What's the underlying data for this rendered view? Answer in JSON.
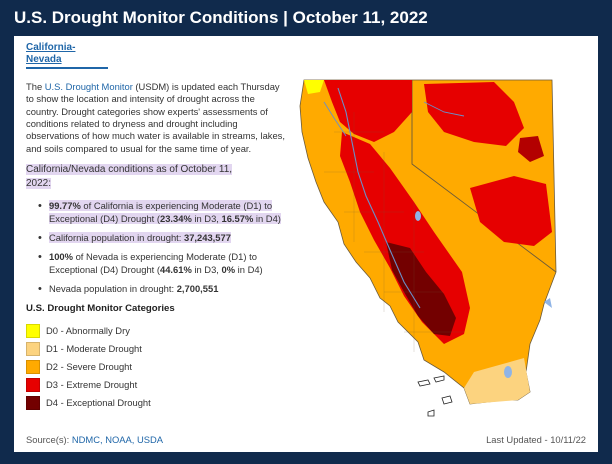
{
  "header": {
    "title": "U.S. Drought Monitor Conditions | October 11, 2022"
  },
  "region": {
    "title": "California-Nevada"
  },
  "intro": {
    "prefix": "The ",
    "link_text": "U.S. Drought Monitor",
    "suffix": " (USDM) is updated each Thursday to show the location and intensity of drought across the country. Drought categories show experts' assessments of conditions related to dryness and drought including observations of how much water is available in streams, lakes, and soils compared to usual for the same time of year."
  },
  "conditions_heading": "California/Nevada conditions as of October 11, 2022:",
  "stats": {
    "ca_pct": "99.77%",
    "ca_text1": " of California is experiencing Moderate (D1) to Exceptional (D4) Drought (",
    "ca_d3": "23.34%",
    "ca_text2": " in D3, ",
    "ca_d4": "16.57%",
    "ca_text3": " in D4)",
    "ca_pop_label": "California population in drought: ",
    "ca_pop": "37,243,577",
    "nv_pct": "100%",
    "nv_text1": " of Nevada is experiencing Moderate (D1) to Exceptional (D4) Drought (",
    "nv_d3": "44.61%",
    "nv_text2": " in D3, ",
    "nv_d4": "0%",
    "nv_text3": " in D4)",
    "nv_pop_label": "Nevada population in drought: ",
    "nv_pop": "2,700,551"
  },
  "legend": {
    "title": "U.S. Drought Monitor Categories",
    "items": [
      {
        "label": "D0 - Abnormally Dry",
        "color": "#ffff00"
      },
      {
        "label": "D1 - Moderate Drought",
        "color": "#fcd37f"
      },
      {
        "label": "D2 - Severe Drought",
        "color": "#ffaa00"
      },
      {
        "label": "D3 - Extreme Drought",
        "color": "#e60000"
      },
      {
        "label": "D4 - Exceptional Drought",
        "color": "#730000"
      }
    ]
  },
  "footer": {
    "source_label": "Source(s): ",
    "source_links": "NDMC, NOAA, USDA",
    "updated": "Last Updated  -  10/11/22"
  },
  "colors": {
    "header_bg": "#102a4c",
    "link": "#1f66a8",
    "highlight": "#e2d6f0",
    "river": "#6a8fc8",
    "water": "#8fb4e6"
  }
}
